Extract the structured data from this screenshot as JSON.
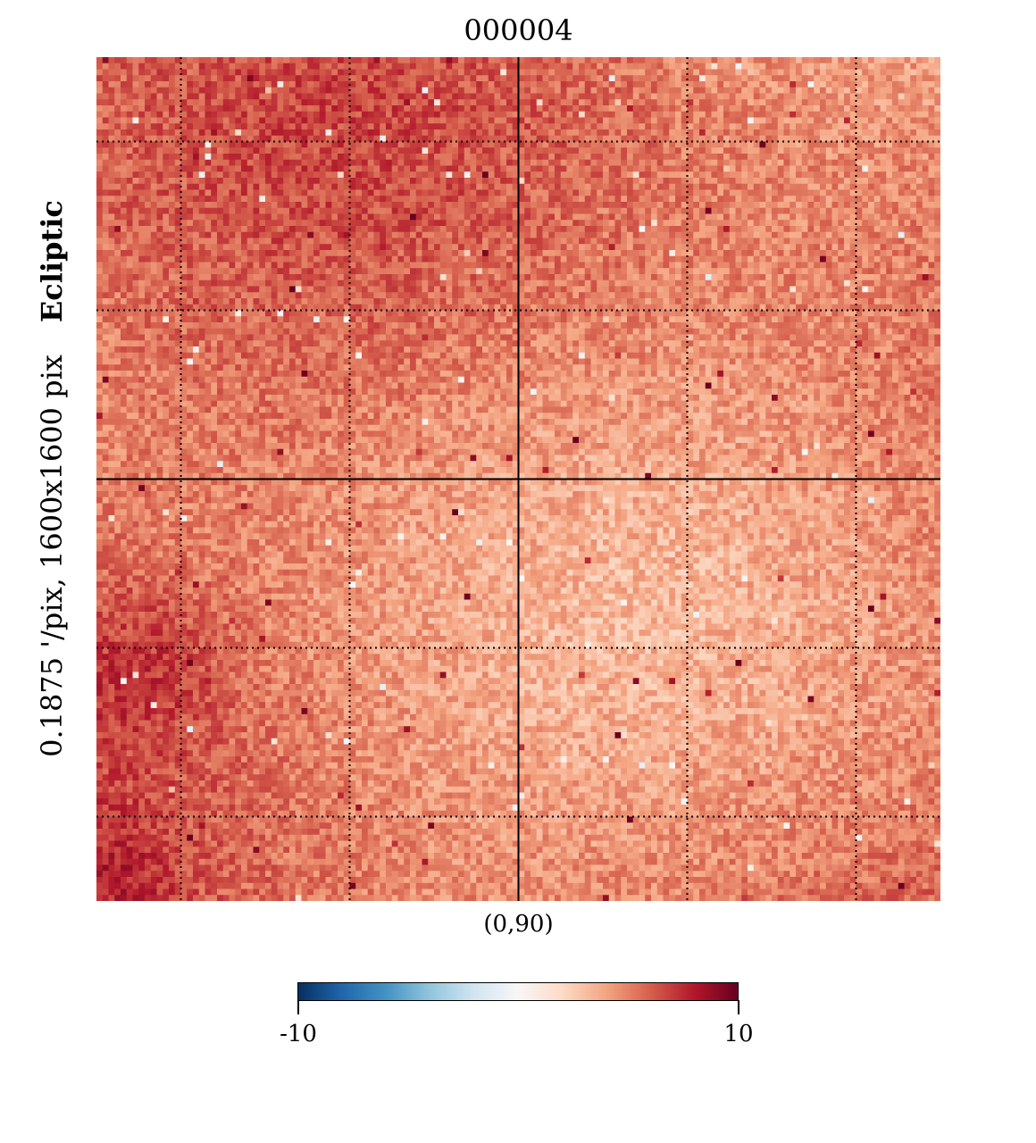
{
  "chart_data": {
    "type": "heatmap",
    "title": "000004",
    "xlabel": "(0,90)",
    "ylabel": {
      "resolution": "0.1875 '/pix,   1600x1600 pix",
      "coordsys": "Ecliptic"
    },
    "colormap": "RdBu_r",
    "colorbar": {
      "min": -10,
      "max": 10,
      "min_label": "-10",
      "max_label": "10",
      "stops": [
        "#053061",
        "#2166ac",
        "#4393c3",
        "#92c5de",
        "#d1e5f0",
        "#f7f7f7",
        "#fddbc7",
        "#f4a582",
        "#d6604d",
        "#b2182b",
        "#67001f"
      ]
    },
    "graticule": true,
    "typical_value_range": [
      3,
      7
    ]
  }
}
